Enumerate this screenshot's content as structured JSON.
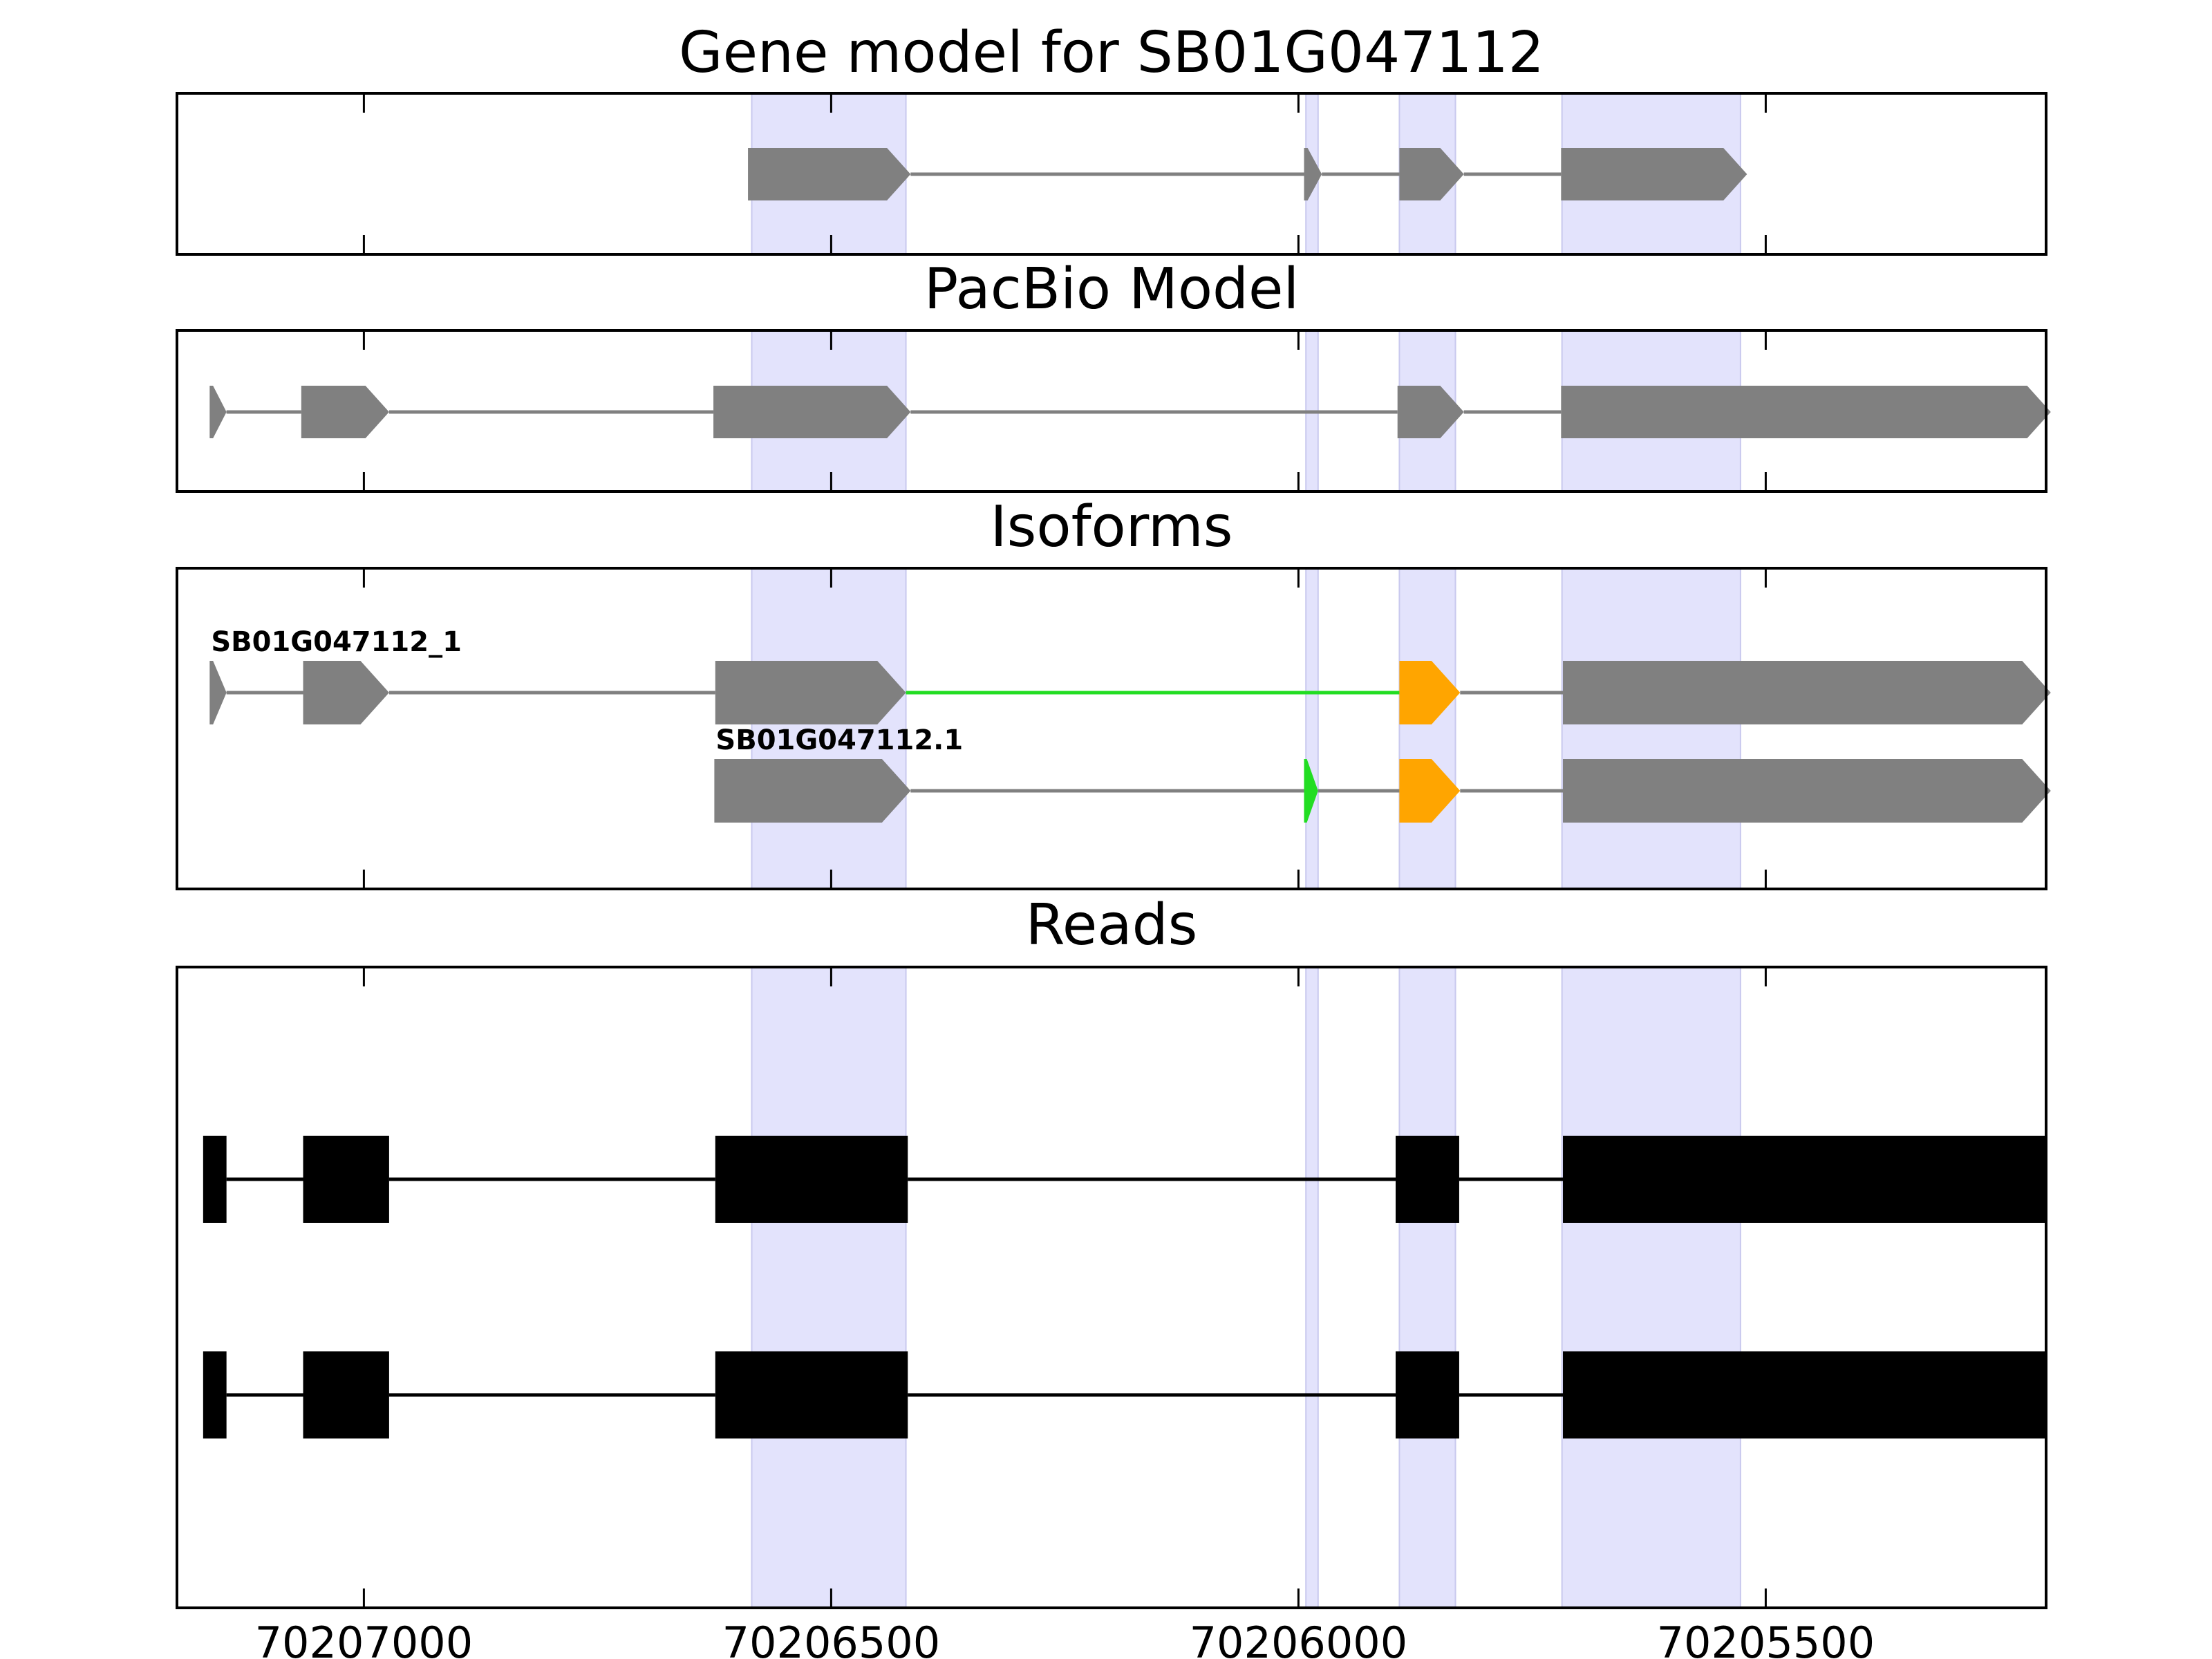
{
  "chart_data": {
    "type": "gene-model",
    "x_axis": {
      "reversed": true,
      "range": [
        70207200,
        70205200
      ],
      "ticks": [
        70207000,
        70206500,
        70206000,
        70205500
      ],
      "tick_labels": [
        "70207000",
        "70206500",
        "70206000",
        "70205500"
      ]
    },
    "highlight_color": "#e3e3fc",
    "highlight_regions": [
      [
        70206585,
        70206420
      ],
      [
        70205992,
        70205979
      ],
      [
        70205892,
        70205832
      ],
      [
        70205718,
        70205527
      ]
    ],
    "panels": [
      {
        "id": "gene-model",
        "title": "Gene model for SB01G047112",
        "tracks": [
          {
            "label": "",
            "color": "#808080",
            "exons": [
              [
                70206589,
                70206415
              ],
              [
                70205994,
                70205975
              ],
              [
                70205892,
                70205823
              ],
              [
                70205719,
                70205520
              ]
            ]
          }
        ]
      },
      {
        "id": "pacbio-model",
        "title": "PacBio Model",
        "tracks": [
          {
            "label": "",
            "color": "#808080",
            "exons": [
              [
                70207165,
                70207147
              ],
              [
                70207067,
                70206973
              ],
              [
                70206626,
                70206415
              ],
              [
                70205894,
                70205823
              ],
              [
                70205719,
                70205195
              ]
            ]
          }
        ]
      },
      {
        "id": "isoforms",
        "title": "Isoforms",
        "tracks": [
          {
            "label": "SB01G047112_1",
            "color": "#808080",
            "highlight_junctions": [
              2
            ],
            "highlight_exons": [
              3
            ],
            "exons": [
              [
                70207165,
                70207147
              ],
              [
                70207065,
                70206973
              ],
              [
                70206624,
                70206420
              ],
              [
                70205892,
                70205827
              ],
              [
                70205717,
                70205195
              ]
            ]
          },
          {
            "label": "SB01G047112.1",
            "color": "#808080",
            "highlight_exons_green": [
              1
            ],
            "highlight_exons": [
              2
            ],
            "exons": [
              [
                70206625,
                70206415
              ],
              [
                70205994,
                70205979
              ],
              [
                70205892,
                70205827
              ],
              [
                70205717,
                70205195
              ]
            ]
          }
        ]
      },
      {
        "id": "reads",
        "title": "Reads",
        "tracks": [
          {
            "label": "",
            "color": "#000000",
            "exons": [
              [
                70207172,
                70207147
              ],
              [
                70207065,
                70206973
              ],
              [
                70206624,
                70206418
              ],
              [
                70205896,
                70205828
              ],
              [
                70205717,
                70205200
              ]
            ]
          },
          {
            "label": "",
            "color": "#000000",
            "exons": [
              [
                70207172,
                70207147
              ],
              [
                70207065,
                70206973
              ],
              [
                70206624,
                70206418
              ],
              [
                70205896,
                70205828
              ],
              [
                70205717,
                70205200
              ]
            ]
          }
        ]
      }
    ],
    "colors": {
      "exon_default": "#808080",
      "exon_orange": "#ffa500",
      "junction_green": "#22dd22",
      "read": "#000000"
    }
  }
}
